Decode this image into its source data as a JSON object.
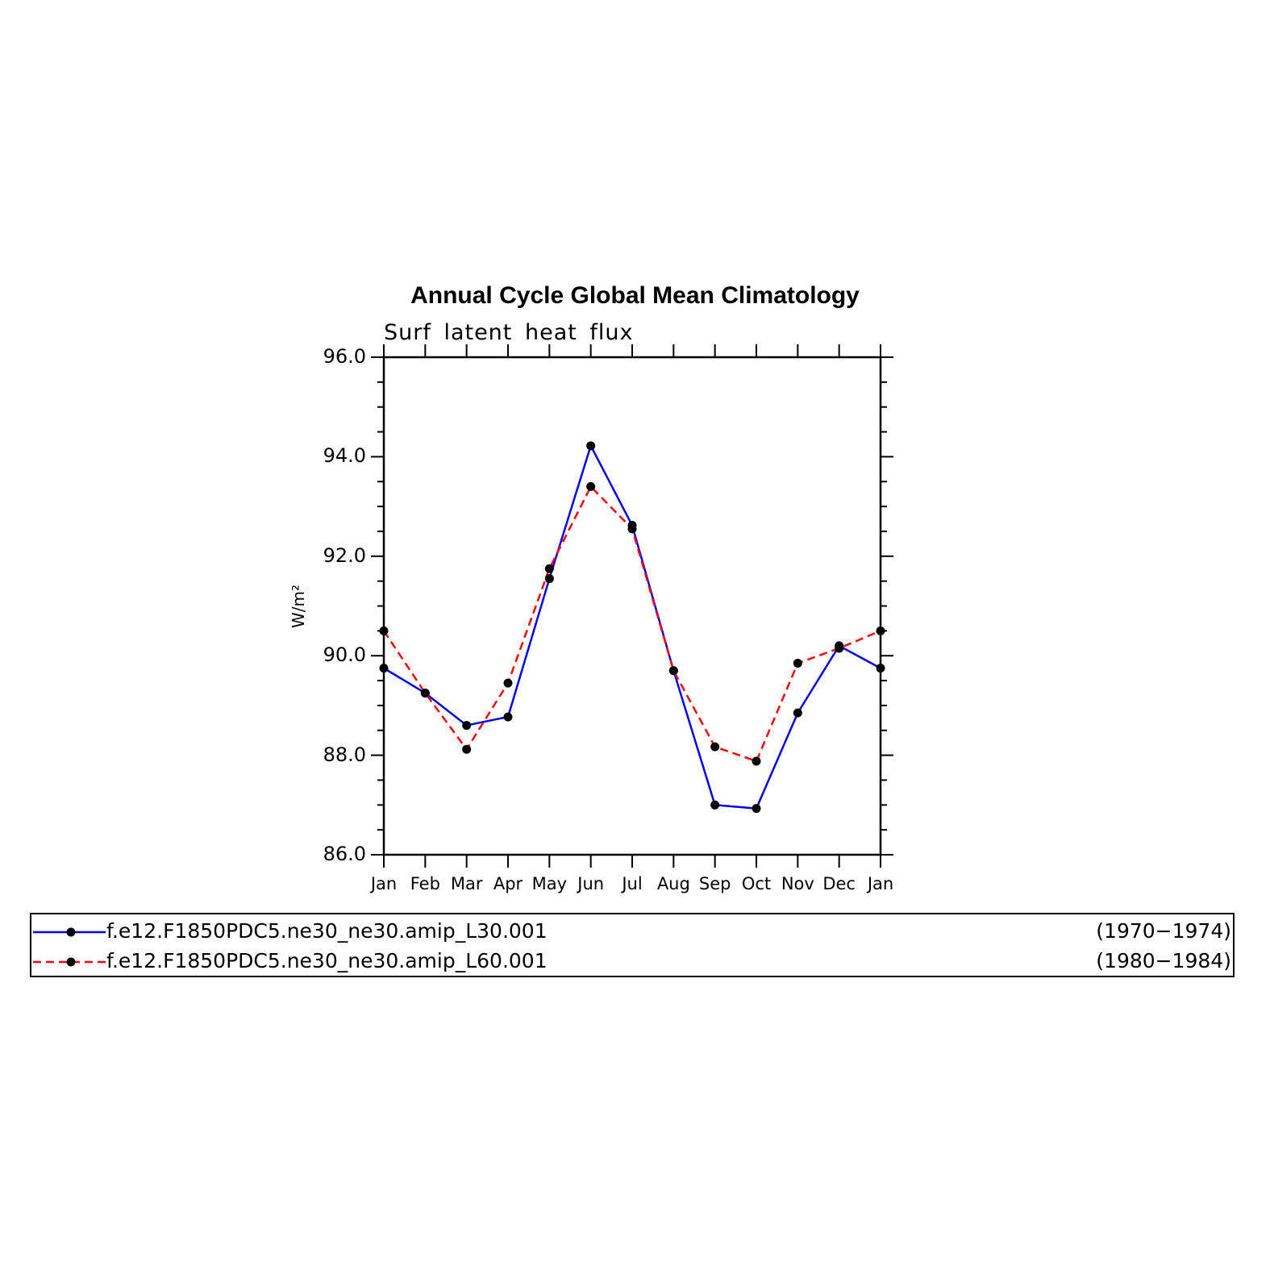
{
  "chart_data": {
    "type": "line",
    "title": "Annual Cycle Global Mean Climatology",
    "subtitle": "Surf latent heat flux",
    "ylabel": "W/m²",
    "xlabel": "",
    "categories": [
      "Jan",
      "Feb",
      "Mar",
      "Apr",
      "May",
      "Jun",
      "Jul",
      "Aug",
      "Sep",
      "Oct",
      "Nov",
      "Dec",
      "Jan"
    ],
    "ylim": [
      86.0,
      96.0
    ],
    "yticks": [
      "86.0",
      "88.0",
      "90.0",
      "92.0",
      "94.0",
      "96.0"
    ],
    "series": [
      {
        "name": "f.e12.F1850PDC5.ne30_ne30.amip_L30.001",
        "period": "(1970−1974)",
        "color": "#0000ff",
        "line_style": "solid",
        "values": [
          89.75,
          89.25,
          88.6,
          88.77,
          91.55,
          94.22,
          92.62,
          89.7,
          87.0,
          86.93,
          88.85,
          90.2,
          89.75
        ]
      },
      {
        "name": "f.e12.F1850PDC5.ne30_ne30.amip_L60.001",
        "period": "(1980−1984)",
        "color": "#ff0000",
        "line_style": "dashed",
        "values": [
          90.5,
          89.25,
          88.12,
          89.45,
          91.75,
          93.4,
          92.55,
          89.7,
          88.17,
          87.88,
          89.85,
          90.15,
          90.5
        ]
      }
    ],
    "grid": false,
    "legend_position": "bottom"
  }
}
